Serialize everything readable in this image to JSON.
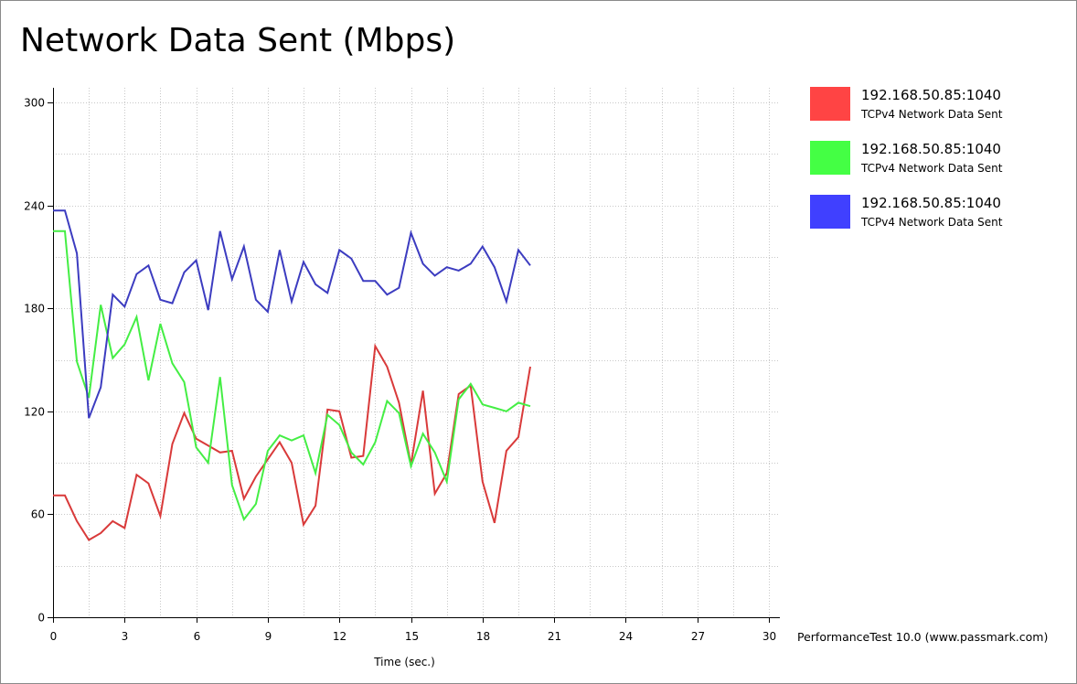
{
  "window": {
    "title": "Network Data Sent (Mbps)"
  },
  "footer": {
    "credit": "PerformanceTest 10.0 (www.passmark.com)"
  },
  "chart_data": {
    "type": "line",
    "title": "Network Data Sent (Mbps)",
    "xlabel": "Time (sec.)",
    "ylabel": "",
    "xlim": [
      0,
      30
    ],
    "ylim": [
      0,
      300
    ],
    "x_ticks": [
      0,
      3,
      6,
      9,
      12,
      15,
      18,
      21,
      24,
      27,
      30
    ],
    "y_ticks": [
      0,
      60,
      120,
      180,
      240,
      300
    ],
    "x_minor_step": 1.5,
    "y_minor_step": 30,
    "grid": true,
    "legend_position": "right",
    "x": [
      0,
      0.5,
      1,
      1.5,
      2,
      2.5,
      3,
      3.5,
      4,
      4.5,
      5,
      5.5,
      6,
      6.5,
      7,
      7.5,
      8,
      8.5,
      9,
      9.5,
      10,
      10.5,
      11,
      11.5,
      12,
      12.5,
      13,
      13.5,
      14,
      14.5,
      15,
      15.5,
      16,
      16.5,
      17,
      17.5,
      18,
      18.5,
      19,
      19.5,
      20
    ],
    "series": [
      {
        "name": "192.168.50.85:1040",
        "subtitle": "TCPv4 Network Data Sent",
        "color": "#ff4444",
        "line_color": "#d93a3a",
        "values": [
          71,
          71,
          56,
          45,
          49,
          56,
          52,
          83,
          78,
          59,
          101,
          119,
          104,
          100,
          96,
          97,
          69,
          82,
          92,
          102,
          90,
          54,
          65,
          121,
          120,
          93,
          94,
          158,
          146,
          125,
          89,
          132,
          72,
          84,
          130,
          135,
          79,
          55,
          97,
          105,
          146
        ]
      },
      {
        "name": "192.168.50.85:1040",
        "subtitle": "TCPv4 Network Data Sent",
        "color": "#44ff44",
        "line_color": "#44ee44",
        "values": [
          225,
          225,
          149,
          128,
          182,
          151,
          159,
          175,
          138,
          171,
          148,
          137,
          99,
          90,
          140,
          77,
          57,
          66,
          97,
          106,
          103,
          106,
          84,
          118,
          112,
          96,
          89,
          102,
          126,
          119,
          88,
          107,
          96,
          79,
          127,
          136,
          124,
          122,
          120,
          125,
          123
        ]
      },
      {
        "name": "192.168.50.85:1040",
        "subtitle": "TCPv4 Network Data Sent",
        "color": "#4040ff",
        "line_color": "#3c3cc0",
        "values": [
          237,
          237,
          212,
          116,
          134,
          188,
          181,
          200,
          205,
          185,
          183,
          201,
          208,
          179,
          225,
          197,
          216,
          185,
          178,
          214,
          184,
          207,
          194,
          189,
          214,
          209,
          196,
          196,
          188,
          192,
          224,
          206,
          199,
          204,
          202,
          206,
          216,
          204,
          184,
          214,
          205
        ]
      }
    ]
  }
}
